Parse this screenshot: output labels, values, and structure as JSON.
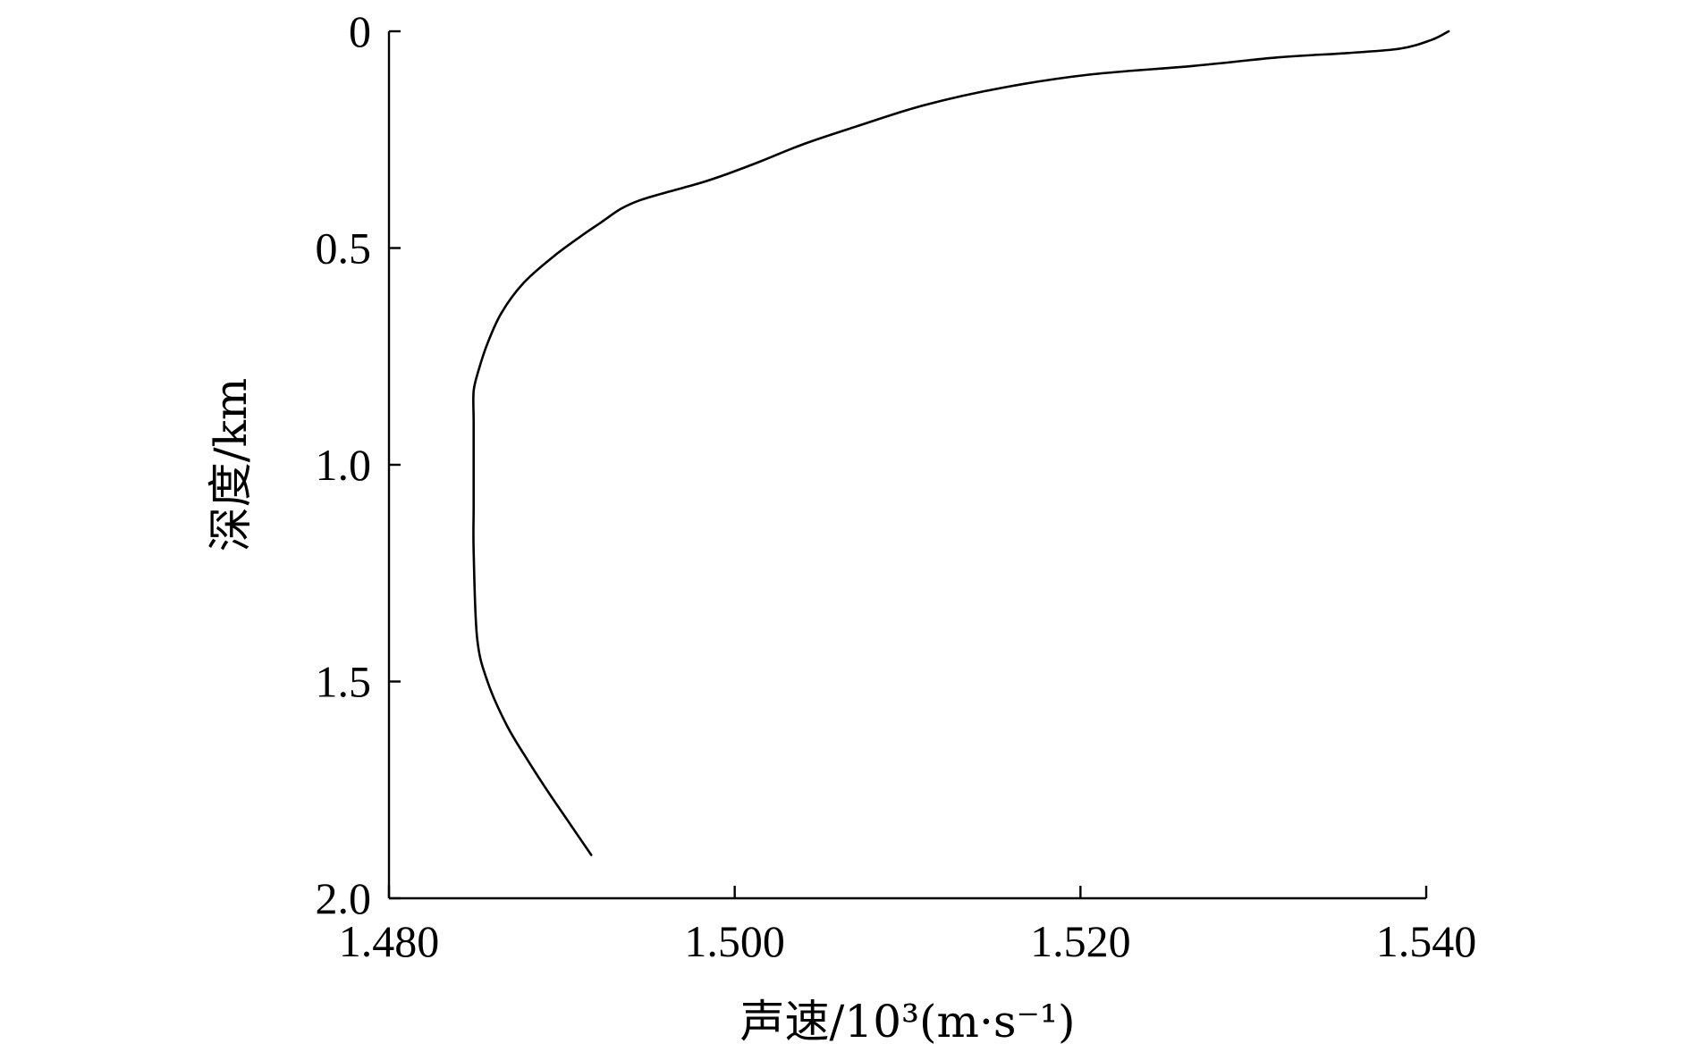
{
  "chart_data": {
    "type": "line",
    "title": "",
    "xlabel": "声速/10³(m·s⁻¹)",
    "ylabel": "深度/km",
    "xlim": [
      1.48,
      1.54
    ],
    "ylim": [
      0,
      2.0
    ],
    "y_inverted": true,
    "x_axis_position": "bottom",
    "grid": false,
    "legend": "none",
    "xticks": [
      1.48,
      1.5,
      1.52,
      1.54
    ],
    "xtick_labels": [
      "1.480",
      "1.500",
      "1.520",
      "1.540"
    ],
    "yticks": [
      0,
      0.5,
      1.0,
      1.5,
      2.0
    ],
    "ytick_labels": [
      "0",
      "0.5",
      "1.0",
      "1.5",
      "2.0"
    ],
    "series": [
      {
        "x": [
          1.5413,
          1.5403,
          1.5385,
          1.5355,
          1.5315,
          1.5265,
          1.5205,
          1.5155,
          1.511,
          1.507,
          1.504,
          1.5015,
          1.4995,
          1.498,
          1.4962,
          1.4945,
          1.4934,
          1.4923,
          1.4912,
          1.4895,
          1.4878,
          1.4865,
          1.4857,
          1.4852,
          1.4849,
          1.4849,
          1.4849,
          1.4849,
          1.4849,
          1.4851,
          1.4857,
          1.4868,
          1.488,
          1.4893,
          1.4905,
          1.4917
        ],
        "y": [
          0.0,
          0.02,
          0.04,
          0.05,
          0.06,
          0.08,
          0.1,
          0.13,
          0.17,
          0.22,
          0.26,
          0.3,
          0.33,
          0.35,
          0.37,
          0.39,
          0.41,
          0.44,
          0.47,
          0.52,
          0.58,
          0.65,
          0.72,
          0.78,
          0.83,
          0.9,
          1.0,
          1.1,
          1.2,
          1.4,
          1.5,
          1.6,
          1.68,
          1.76,
          1.83,
          1.9
        ]
      }
    ]
  },
  "colors": {
    "line": "#000000",
    "axes": "#000000",
    "background": "#ffffff"
  }
}
